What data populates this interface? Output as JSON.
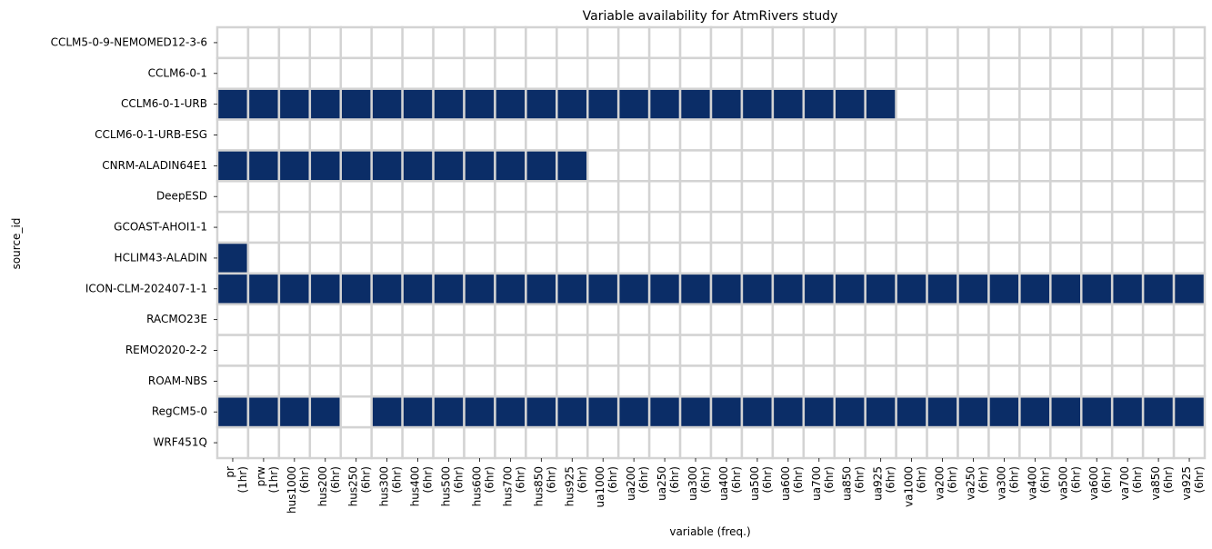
{
  "chart_data": {
    "type": "heatmap",
    "title": "Variable availability for AtmRivers study",
    "xlabel": "variable (freq.)",
    "ylabel": "source_id",
    "colors": {
      "available": "#0b2d67",
      "missing": "#ffffff",
      "gridline": "#d3d3d3"
    },
    "columns": [
      {
        "variable": "pr",
        "freq": "(1hr)"
      },
      {
        "variable": "prw",
        "freq": "(1hr)"
      },
      {
        "variable": "hus1000",
        "freq": "(6hr)"
      },
      {
        "variable": "hus200",
        "freq": "(6hr)"
      },
      {
        "variable": "hus250",
        "freq": "(6hr)"
      },
      {
        "variable": "hus300",
        "freq": "(6hr)"
      },
      {
        "variable": "hus400",
        "freq": "(6hr)"
      },
      {
        "variable": "hus500",
        "freq": "(6hr)"
      },
      {
        "variable": "hus600",
        "freq": "(6hr)"
      },
      {
        "variable": "hus700",
        "freq": "(6hr)"
      },
      {
        "variable": "hus850",
        "freq": "(6hr)"
      },
      {
        "variable": "hus925",
        "freq": "(6hr)"
      },
      {
        "variable": "ua1000",
        "freq": "(6hr)"
      },
      {
        "variable": "ua200",
        "freq": "(6hr)"
      },
      {
        "variable": "ua250",
        "freq": "(6hr)"
      },
      {
        "variable": "ua300",
        "freq": "(6hr)"
      },
      {
        "variable": "ua400",
        "freq": "(6hr)"
      },
      {
        "variable": "ua500",
        "freq": "(6hr)"
      },
      {
        "variable": "ua600",
        "freq": "(6hr)"
      },
      {
        "variable": "ua700",
        "freq": "(6hr)"
      },
      {
        "variable": "ua850",
        "freq": "(6hr)"
      },
      {
        "variable": "ua925",
        "freq": "(6hr)"
      },
      {
        "variable": "va1000",
        "freq": "(6hr)"
      },
      {
        "variable": "va200",
        "freq": "(6hr)"
      },
      {
        "variable": "va250",
        "freq": "(6hr)"
      },
      {
        "variable": "va300",
        "freq": "(6hr)"
      },
      {
        "variable": "va400",
        "freq": "(6hr)"
      },
      {
        "variable": "va500",
        "freq": "(6hr)"
      },
      {
        "variable": "va600",
        "freq": "(6hr)"
      },
      {
        "variable": "va700",
        "freq": "(6hr)"
      },
      {
        "variable": "va850",
        "freq": "(6hr)"
      },
      {
        "variable": "va925",
        "freq": "(6hr)"
      }
    ],
    "rows": [
      "CCLM5-0-9-NEMOMED12-3-6",
      "CCLM6-0-1",
      "CCLM6-0-1-URB",
      "CCLM6-0-1-URB-ESG",
      "CNRM-ALADIN64E1",
      "DeepESD",
      "GCOAST-AHOI1-1",
      "HCLIM43-ALADIN",
      "ICON-CLM-202407-1-1",
      "RACMO23E",
      "REMO2020-2-2",
      "ROAM-NBS",
      "RegCM5-0",
      "WRF451Q"
    ],
    "values": [
      [
        0,
        0,
        0,
        0,
        0,
        0,
        0,
        0,
        0,
        0,
        0,
        0,
        0,
        0,
        0,
        0,
        0,
        0,
        0,
        0,
        0,
        0,
        0,
        0,
        0,
        0,
        0,
        0,
        0,
        0,
        0,
        0
      ],
      [
        0,
        0,
        0,
        0,
        0,
        0,
        0,
        0,
        0,
        0,
        0,
        0,
        0,
        0,
        0,
        0,
        0,
        0,
        0,
        0,
        0,
        0,
        0,
        0,
        0,
        0,
        0,
        0,
        0,
        0,
        0,
        0
      ],
      [
        1,
        1,
        1,
        1,
        1,
        1,
        1,
        1,
        1,
        1,
        1,
        1,
        1,
        1,
        1,
        1,
        1,
        1,
        1,
        1,
        1,
        1,
        0,
        0,
        0,
        0,
        0,
        0,
        0,
        0,
        0,
        0
      ],
      [
        0,
        0,
        0,
        0,
        0,
        0,
        0,
        0,
        0,
        0,
        0,
        0,
        0,
        0,
        0,
        0,
        0,
        0,
        0,
        0,
        0,
        0,
        0,
        0,
        0,
        0,
        0,
        0,
        0,
        0,
        0,
        0
      ],
      [
        1,
        1,
        1,
        1,
        1,
        1,
        1,
        1,
        1,
        1,
        1,
        1,
        0,
        0,
        0,
        0,
        0,
        0,
        0,
        0,
        0,
        0,
        0,
        0,
        0,
        0,
        0,
        0,
        0,
        0,
        0,
        0
      ],
      [
        0,
        0,
        0,
        0,
        0,
        0,
        0,
        0,
        0,
        0,
        0,
        0,
        0,
        0,
        0,
        0,
        0,
        0,
        0,
        0,
        0,
        0,
        0,
        0,
        0,
        0,
        0,
        0,
        0,
        0,
        0,
        0
      ],
      [
        0,
        0,
        0,
        0,
        0,
        0,
        0,
        0,
        0,
        0,
        0,
        0,
        0,
        0,
        0,
        0,
        0,
        0,
        0,
        0,
        0,
        0,
        0,
        0,
        0,
        0,
        0,
        0,
        0,
        0,
        0,
        0
      ],
      [
        1,
        0,
        0,
        0,
        0,
        0,
        0,
        0,
        0,
        0,
        0,
        0,
        0,
        0,
        0,
        0,
        0,
        0,
        0,
        0,
        0,
        0,
        0,
        0,
        0,
        0,
        0,
        0,
        0,
        0,
        0,
        0
      ],
      [
        1,
        1,
        1,
        1,
        1,
        1,
        1,
        1,
        1,
        1,
        1,
        1,
        1,
        1,
        1,
        1,
        1,
        1,
        1,
        1,
        1,
        1,
        1,
        1,
        1,
        1,
        1,
        1,
        1,
        1,
        1,
        1
      ],
      [
        0,
        0,
        0,
        0,
        0,
        0,
        0,
        0,
        0,
        0,
        0,
        0,
        0,
        0,
        0,
        0,
        0,
        0,
        0,
        0,
        0,
        0,
        0,
        0,
        0,
        0,
        0,
        0,
        0,
        0,
        0,
        0
      ],
      [
        0,
        0,
        0,
        0,
        0,
        0,
        0,
        0,
        0,
        0,
        0,
        0,
        0,
        0,
        0,
        0,
        0,
        0,
        0,
        0,
        0,
        0,
        0,
        0,
        0,
        0,
        0,
        0,
        0,
        0,
        0,
        0
      ],
      [
        0,
        0,
        0,
        0,
        0,
        0,
        0,
        0,
        0,
        0,
        0,
        0,
        0,
        0,
        0,
        0,
        0,
        0,
        0,
        0,
        0,
        0,
        0,
        0,
        0,
        0,
        0,
        0,
        0,
        0,
        0,
        0
      ],
      [
        1,
        1,
        1,
        1,
        0,
        1,
        1,
        1,
        1,
        1,
        1,
        1,
        1,
        1,
        1,
        1,
        1,
        1,
        1,
        1,
        1,
        1,
        1,
        1,
        1,
        1,
        1,
        1,
        1,
        1,
        1,
        1
      ],
      [
        0,
        0,
        0,
        0,
        0,
        0,
        0,
        0,
        0,
        0,
        0,
        0,
        0,
        0,
        0,
        0,
        0,
        0,
        0,
        0,
        0,
        0,
        0,
        0,
        0,
        0,
        0,
        0,
        0,
        0,
        0,
        0
      ]
    ],
    "grid": true,
    "legend": "none"
  }
}
